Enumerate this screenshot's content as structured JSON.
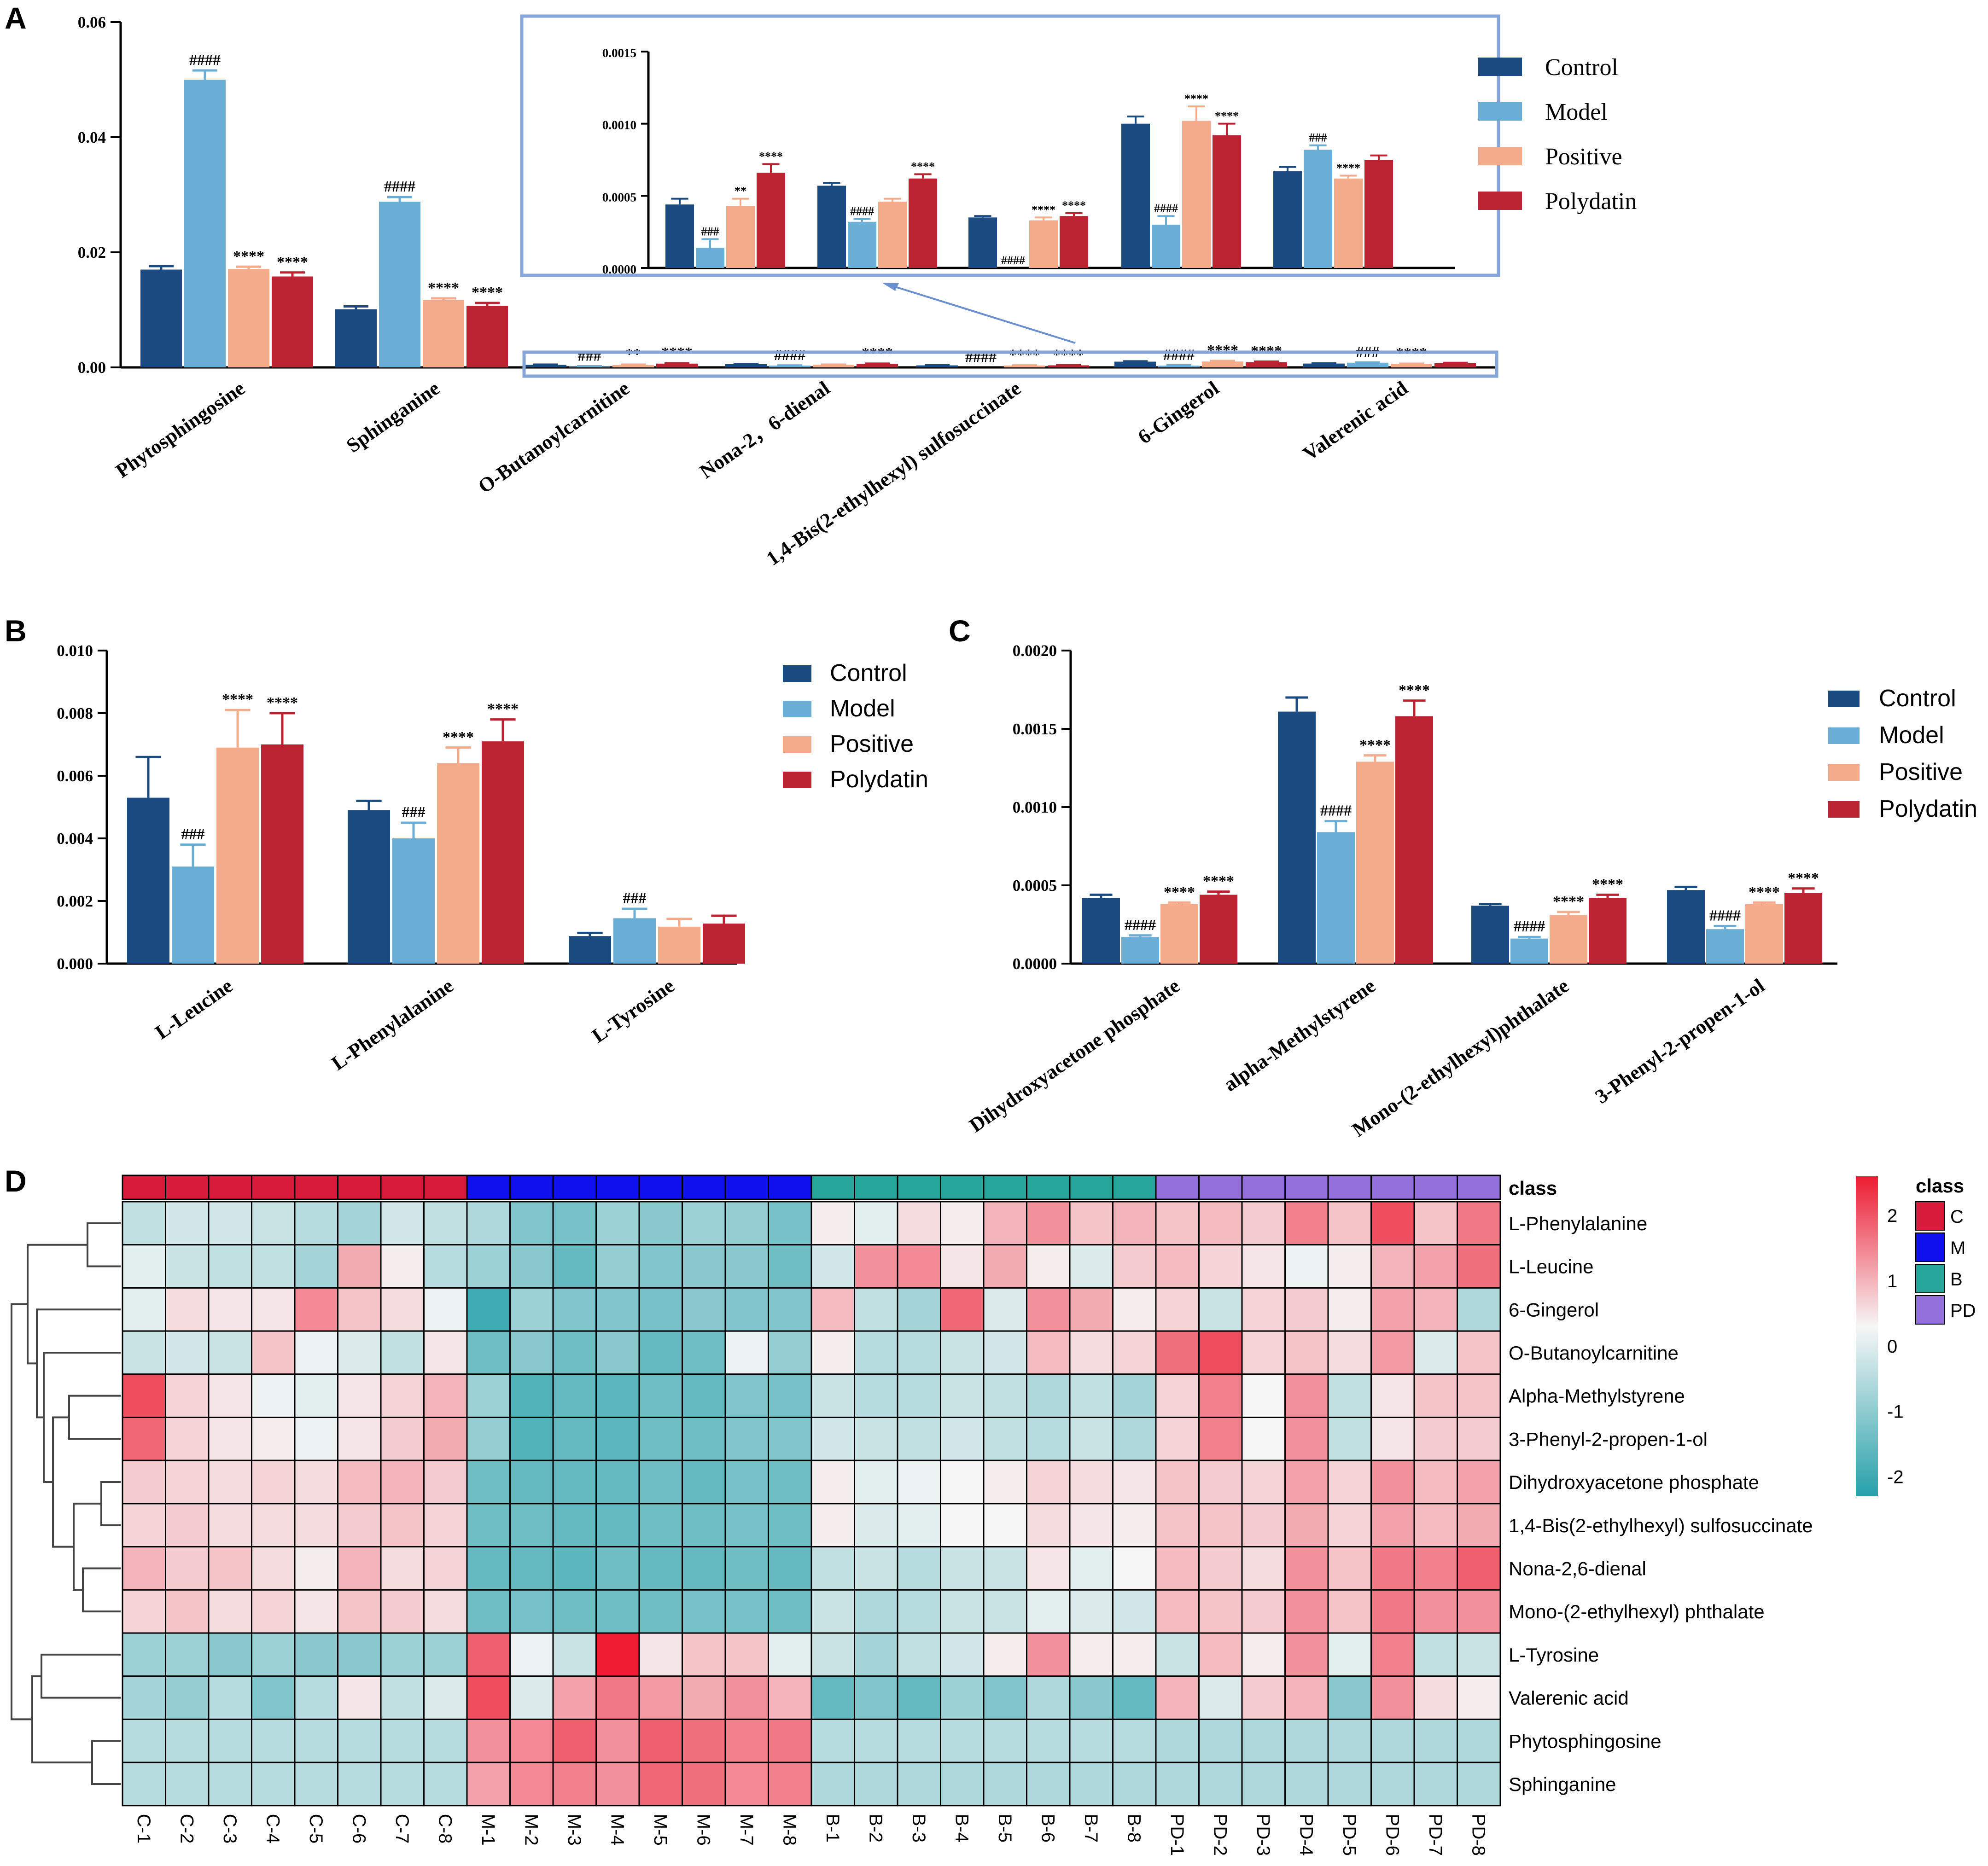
{
  "chart_data": [
    {
      "panel": "A",
      "type": "bar",
      "categories": [
        "Phytosphingosine",
        "Sphinganine",
        "O-Butanoylcarnitine",
        "Nona-2，6-dienal",
        "1,4-Bis(2-ethylhexyl) sulfosuccinate",
        "6-Gingerol",
        "Valerenic acid"
      ],
      "series": [
        {
          "name": "Control",
          "color": "#1a4a80",
          "values": [
            0.017,
            0.0101,
            0.00044,
            0.00057,
            0.00035,
            0.001,
            0.00067
          ],
          "errors": [
            0.0006,
            0.0005,
            4e-05,
            2e-05,
            1e-05,
            5e-05,
            3e-05
          ]
        },
        {
          "name": "Model",
          "color": "#6aaed6",
          "values": [
            0.05,
            0.0288,
            0.00014,
            0.00032,
            0.0,
            0.0003,
            0.00082
          ],
          "errors": [
            0.0016,
            0.0008,
            6e-05,
            2e-05,
            0.0,
            6e-05,
            3e-05
          ]
        },
        {
          "name": "Positive",
          "color": "#f4ab8b",
          "values": [
            0.0171,
            0.0117,
            0.00043,
            0.00046,
            0.00033,
            0.00102,
            0.00062
          ],
          "errors": [
            0.0004,
            0.0003,
            5e-05,
            2e-05,
            2e-05,
            0.0001,
            2e-05
          ]
        },
        {
          "name": "Polydatin",
          "color": "#bb2232",
          "values": [
            0.0158,
            0.0107,
            0.00066,
            0.00062,
            0.00036,
            0.00092,
            0.00075
          ],
          "errors": [
            0.0007,
            0.0005,
            6e-05,
            3e-05,
            2e-05,
            8e-05,
            3e-05
          ]
        }
      ],
      "annotations": [
        [
          "",
          "####",
          "****",
          "****"
        ],
        [
          "",
          "####",
          "****",
          "****"
        ],
        [
          "",
          "###",
          "**",
          "****"
        ],
        [
          "",
          "####",
          "",
          "****"
        ],
        [
          "",
          "####",
          "****",
          "****"
        ],
        [
          "",
          "####",
          "****",
          "****"
        ],
        [
          "",
          "###",
          "****",
          ""
        ]
      ],
      "ylim": [
        0,
        0.06
      ],
      "yticks": [
        "0.00",
        "0.02",
        "0.04",
        "0.06"
      ],
      "inset": {
        "categories_from": 2,
        "ylim": [
          0,
          0.0015
        ],
        "yticks": [
          "0.0000",
          "0.0005",
          "0.0010",
          "0.0015"
        ]
      }
    },
    {
      "panel": "B",
      "type": "bar",
      "categories": [
        "L-Leucine",
        "L-Phenylalanine",
        "L-Tyrosine"
      ],
      "series": [
        {
          "name": "Control",
          "color": "#1a4a80",
          "values": [
            0.0053,
            0.0049,
            0.00088
          ],
          "errors": [
            0.0013,
            0.0003,
            0.0001
          ]
        },
        {
          "name": "Model",
          "color": "#6aaed6",
          "values": [
            0.0031,
            0.004,
            0.00145
          ],
          "errors": [
            0.0007,
            0.0005,
            0.0003
          ]
        },
        {
          "name": "Positive",
          "color": "#f4ab8b",
          "values": [
            0.0069,
            0.0064,
            0.00118
          ],
          "errors": [
            0.0012,
            0.0005,
            0.00025
          ]
        },
        {
          "name": "Polydatin",
          "color": "#bb2232",
          "values": [
            0.007,
            0.0071,
            0.00128
          ],
          "errors": [
            0.001,
            0.0007,
            0.00025
          ]
        }
      ],
      "annotations": [
        [
          "",
          "###",
          "****",
          "****"
        ],
        [
          "",
          "###",
          "****",
          "****"
        ],
        [
          "",
          "###",
          "",
          ""
        ]
      ],
      "ylim": [
        0,
        0.01
      ],
      "yticks": [
        "0.000",
        "0.002",
        "0.004",
        "0.006",
        "0.008",
        "0.010"
      ]
    },
    {
      "panel": "C",
      "type": "bar",
      "categories": [
        "Dihydroxyacetone phosphate",
        "alpha-Methylstyrene",
        "Mono-(2-ethylhexyl)phthalate",
        "3-Phenyl-2-propen-1-ol"
      ],
      "series": [
        {
          "name": "Control",
          "color": "#1a4a80",
          "values": [
            0.00042,
            0.00161,
            0.00037,
            0.00047
          ],
          "errors": [
            2e-05,
            9e-05,
            1e-05,
            2e-05
          ]
        },
        {
          "name": "Model",
          "color": "#6aaed6",
          "values": [
            0.00017,
            0.00084,
            0.00016,
            0.00022
          ],
          "errors": [
            1e-05,
            7e-05,
            1e-05,
            2e-05
          ]
        },
        {
          "name": "Positive",
          "color": "#f4ab8b",
          "values": [
            0.00038,
            0.00129,
            0.00031,
            0.00038
          ],
          "errors": [
            1e-05,
            4e-05,
            2e-05,
            1e-05
          ]
        },
        {
          "name": "Polydatin",
          "color": "#bb2232",
          "values": [
            0.00044,
            0.00158,
            0.00042,
            0.00045
          ],
          "errors": [
            2e-05,
            0.0001,
            2e-05,
            3e-05
          ]
        }
      ],
      "annotations": [
        [
          "",
          "####",
          "****",
          "****"
        ],
        [
          "",
          "####",
          "****",
          "****"
        ],
        [
          "",
          "####",
          "****",
          "****"
        ],
        [
          "",
          "####",
          "****",
          "****"
        ]
      ],
      "ylim": [
        0,
        0.002
      ],
      "yticks": [
        "0.0000",
        "0.0005",
        "0.0010",
        "0.0015",
        "0.0020"
      ]
    },
    {
      "panel": "D",
      "type": "heatmap",
      "columns": [
        "C-1",
        "C-2",
        "C-3",
        "C-4",
        "C-5",
        "C-6",
        "C-7",
        "C-8",
        "M-1",
        "M-2",
        "M-3",
        "M-4",
        "M-5",
        "M-6",
        "M-7",
        "M-8",
        "B-1",
        "B-2",
        "B-3",
        "B-4",
        "B-5",
        "B-6",
        "B-7",
        "B-8",
        "PD-1",
        "PD-2",
        "PD-3",
        "PD-4",
        "PD-5",
        "PD-6",
        "PD-7",
        "PD-8"
      ],
      "rows": [
        "L-Phenylalanine",
        "L-Leucine",
        "6-Gingerol",
        "O-Butanoylcarnitine",
        "Alpha-Methylstyrene",
        "3-Phenyl-2-propen-1-ol",
        "Dihydroxyacetone phosphate",
        "1,4-Bis(2-ethylhexyl) sulfosuccinate",
        "Nona-2,6-dienal",
        "Mono-(2-ethylhexyl) phthalate",
        "L-Tyrosine",
        "Valerenic acid",
        "Phytosphingosine",
        "Sphinganine"
      ],
      "values": [
        [
          -0.6,
          -0.4,
          -0.4,
          -0.5,
          -0.7,
          -0.9,
          -0.4,
          -0.6,
          -0.8,
          -1.3,
          -1.4,
          -1.0,
          -1.2,
          -1.0,
          -1.1,
          -1.4,
          0.1,
          -0.2,
          0.3,
          0.1,
          0.8,
          1.2,
          0.6,
          0.8,
          0.6,
          0.7,
          0.5,
          1.4,
          0.6,
          2.0,
          0.6,
          1.5
        ],
        [
          -0.2,
          -0.5,
          -0.6,
          -0.6,
          -0.9,
          0.9,
          0.1,
          -0.7,
          -1.0,
          -1.2,
          -1.6,
          -1.1,
          -1.3,
          -1.2,
          -1.2,
          -1.5,
          -0.4,
          1.2,
          1.3,
          0.2,
          0.9,
          0.1,
          -0.3,
          0.5,
          0.7,
          0.4,
          0.2,
          -0.1,
          0.1,
          0.8,
          1.0,
          1.6
        ],
        [
          -0.2,
          0.3,
          0.2,
          0.2,
          1.3,
          0.6,
          0.3,
          -0.1,
          -2.0,
          -1.0,
          -1.3,
          -1.3,
          -1.4,
          -1.2,
          -1.3,
          -1.3,
          0.7,
          -0.6,
          -0.9,
          1.7,
          -0.3,
          1.2,
          0.9,
          0.1,
          0.4,
          -0.5,
          0.4,
          0.5,
          0.1,
          1.0,
          0.8,
          -0.8
        ],
        [
          -0.5,
          -0.4,
          -0.5,
          0.6,
          -0.1,
          -0.3,
          -0.6,
          0.2,
          -1.5,
          -1.2,
          -1.5,
          -1.2,
          -1.6,
          -1.5,
          -0.1,
          -1.1,
          0.1,
          -0.7,
          -0.7,
          -0.5,
          -0.4,
          0.7,
          0.3,
          0.4,
          1.6,
          2.0,
          0.4,
          0.6,
          0.3,
          1.1,
          -0.3,
          0.6
        ],
        [
          2.0,
          0.4,
          0.2,
          -0.1,
          -0.2,
          0.2,
          0.4,
          0.8,
          -1.0,
          -1.8,
          -1.6,
          -1.7,
          -1.5,
          -1.6,
          -1.3,
          -1.4,
          -0.5,
          -0.7,
          -0.7,
          -0.5,
          -0.6,
          -0.8,
          -0.6,
          -0.9,
          0.4,
          1.4,
          0.0,
          1.2,
          -0.6,
          0.2,
          0.6,
          0.6
        ],
        [
          1.7,
          0.4,
          0.2,
          0.1,
          -0.1,
          0.2,
          0.5,
          0.9,
          -1.1,
          -1.8,
          -1.6,
          -1.7,
          -1.5,
          -1.5,
          -1.3,
          -1.3,
          -0.4,
          -0.5,
          -0.6,
          -0.4,
          -0.6,
          -0.7,
          -0.5,
          -0.8,
          0.4,
          1.4,
          0.0,
          1.2,
          -0.6,
          0.2,
          0.5,
          0.5
        ],
        [
          0.5,
          0.4,
          0.3,
          0.4,
          0.3,
          0.7,
          0.8,
          0.5,
          -1.5,
          -1.6,
          -1.6,
          -1.6,
          -1.5,
          -1.6,
          -1.4,
          -1.5,
          0.1,
          -0.2,
          -0.1,
          0.0,
          0.1,
          0.4,
          0.3,
          0.2,
          0.6,
          0.5,
          0.4,
          1.0,
          0.4,
          1.2,
          0.7,
          1.0
        ],
        [
          0.4,
          0.5,
          0.3,
          0.3,
          0.3,
          0.5,
          0.6,
          0.4,
          -1.5,
          -1.5,
          -1.6,
          -1.6,
          -1.5,
          -1.5,
          -1.4,
          -1.5,
          0.1,
          -0.3,
          -0.2,
          0.0,
          0.0,
          0.3,
          0.2,
          0.1,
          0.6,
          0.6,
          0.5,
          0.9,
          0.4,
          1.0,
          0.7,
          0.9
        ],
        [
          0.8,
          0.5,
          0.6,
          0.3,
          0.1,
          0.8,
          0.3,
          0.4,
          -1.6,
          -1.6,
          -1.7,
          -1.5,
          -1.6,
          -1.6,
          -1.5,
          -1.6,
          -0.6,
          -0.5,
          -0.7,
          -0.5,
          -0.5,
          0.2,
          -0.2,
          0.0,
          0.7,
          0.5,
          0.3,
          1.2,
          0.6,
          1.5,
          1.4,
          1.8
        ],
        [
          0.4,
          0.6,
          0.3,
          0.4,
          0.2,
          0.6,
          0.5,
          0.3,
          -1.5,
          -1.4,
          -1.5,
          -1.5,
          -1.5,
          -1.4,
          -1.4,
          -1.5,
          -0.5,
          -0.8,
          -0.7,
          -0.5,
          -0.5,
          -0.2,
          -0.3,
          -0.4,
          0.7,
          0.6,
          0.5,
          1.2,
          0.6,
          1.5,
          1.2,
          1.2
        ],
        [
          -1.0,
          -1.0,
          -1.2,
          -1.0,
          -1.2,
          -1.2,
          -1.0,
          -1.0,
          1.8,
          -0.1,
          -0.5,
          2.6,
          0.2,
          0.6,
          0.6,
          -0.2,
          -0.5,
          -0.9,
          -0.6,
          -0.4,
          0.1,
          1.2,
          0.1,
          0.1,
          -0.5,
          0.7,
          0.1,
          1.2,
          -0.2,
          1.4,
          -0.6,
          -0.5
        ],
        [
          -0.9,
          -1.1,
          -0.7,
          -1.3,
          -0.7,
          0.2,
          -0.6,
          -0.3,
          2.0,
          -0.3,
          1.0,
          1.5,
          1.1,
          0.9,
          1.2,
          0.8,
          -1.6,
          -1.3,
          -1.6,
          -1.0,
          -1.3,
          -0.8,
          -1.2,
          -1.6,
          0.8,
          -0.3,
          0.5,
          0.8,
          -1.2,
          1.2,
          0.3,
          0.1
        ],
        [
          -0.7,
          -0.7,
          -0.7,
          -0.7,
          -0.7,
          -0.7,
          -0.7,
          -0.7,
          1.2,
          1.3,
          1.8,
          1.2,
          1.8,
          1.6,
          1.4,
          1.5,
          -0.7,
          -0.7,
          -0.7,
          -0.7,
          -0.7,
          -0.7,
          -0.7,
          -0.7,
          -0.8,
          -0.8,
          -0.8,
          -0.8,
          -0.8,
          -0.8,
          -0.8,
          -0.8
        ],
        [
          -0.7,
          -0.7,
          -0.7,
          -0.7,
          -0.7,
          -0.7,
          -0.7,
          -0.7,
          1.0,
          1.3,
          1.4,
          1.2,
          1.7,
          1.6,
          1.3,
          1.4,
          -0.8,
          -0.8,
          -0.8,
          -0.8,
          -0.8,
          -0.8,
          -0.8,
          -0.8,
          -0.8,
          -0.8,
          -0.8,
          -0.8,
          -0.8,
          -0.8,
          -0.8,
          -0.8
        ]
      ],
      "class_title": "class",
      "classes": [
        {
          "code": "C",
          "color": "#d81b3b"
        },
        {
          "code": "M",
          "color": "#1010ee"
        },
        {
          "code": "B",
          "color": "#26a69a"
        },
        {
          "code": "PD",
          "color": "#9370db"
        }
      ],
      "colorbar_ticks": [
        "2",
        "1",
        "0",
        "-1",
        "-2"
      ],
      "colorbar_range": [
        -2.3,
        2.6
      ]
    }
  ],
  "panel_labels": [
    "A",
    "B",
    "C",
    "D"
  ],
  "legend_labels": [
    "Control",
    "Model",
    "Positive",
    "Polydatin"
  ]
}
